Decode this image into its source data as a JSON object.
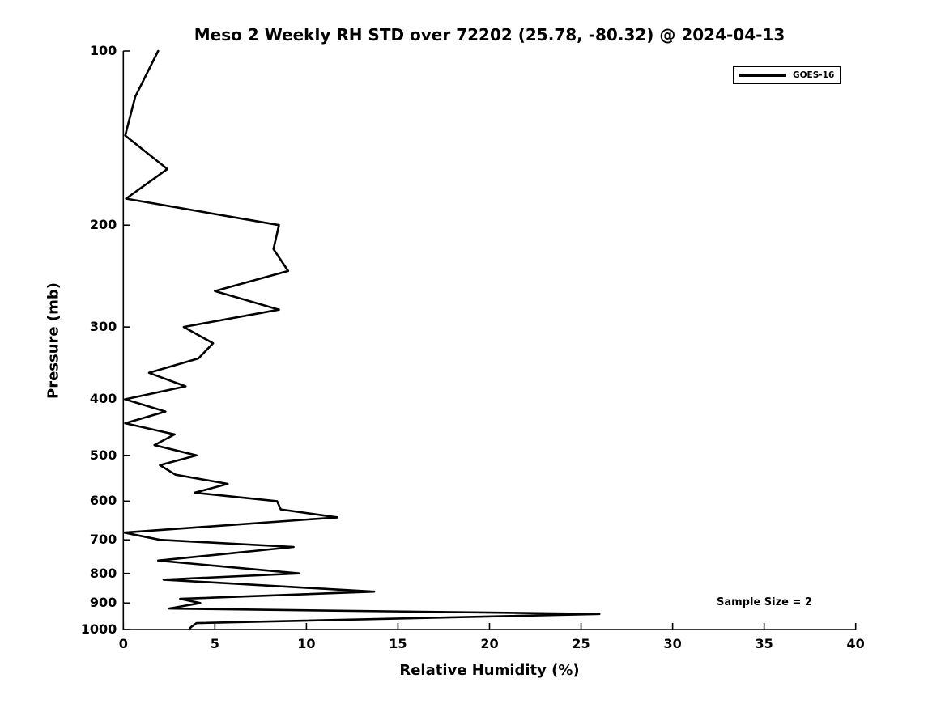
{
  "colors": {
    "line": "#000000",
    "text": "#000000",
    "background": "#ffffff"
  },
  "chart_data": {
    "type": "line",
    "title": "Meso 2 Weekly RH STD over 72202 (25.78, -80.32) @ 2024-04-13",
    "xlabel": "Relative Humidity (%)",
    "ylabel": "Pressure (mb)",
    "xlim": [
      0,
      40
    ],
    "ylim": [
      100,
      1000
    ],
    "y_scale": "log",
    "y_inverted": true,
    "grid": false,
    "x_ticks": [
      0,
      5,
      10,
      15,
      20,
      25,
      30,
      35,
      40
    ],
    "y_ticks": [
      100,
      200,
      300,
      400,
      500,
      600,
      700,
      800,
      900,
      1000
    ],
    "legend": {
      "position": "upper right",
      "entries": [
        {
          "label": "GOES-16",
          "color": "#000000"
        }
      ]
    },
    "annotation": "Sample Size = 2",
    "series": [
      {
        "name": "GOES-16",
        "color": "#000000",
        "points_format": [
          "pressure_mb",
          "rh_std_percent"
        ],
        "points": [
          [
            100,
            1.9
          ],
          [
            120,
            0.65
          ],
          [
            140,
            0.1
          ],
          [
            160,
            2.4
          ],
          [
            180,
            0.15
          ],
          [
            200,
            8.5
          ],
          [
            220,
            8.2
          ],
          [
            240,
            9.0
          ],
          [
            260,
            5.0
          ],
          [
            280,
            8.5
          ],
          [
            300,
            3.3
          ],
          [
            320,
            4.9
          ],
          [
            340,
            4.1
          ],
          [
            360,
            1.4
          ],
          [
            380,
            3.4
          ],
          [
            400,
            0.1
          ],
          [
            420,
            2.3
          ],
          [
            440,
            0.1
          ],
          [
            460,
            2.8
          ],
          [
            480,
            1.7
          ],
          [
            500,
            4.0
          ],
          [
            520,
            2.0
          ],
          [
            540,
            2.85
          ],
          [
            560,
            5.7
          ],
          [
            580,
            3.9
          ],
          [
            600,
            8.4
          ],
          [
            620,
            8.6
          ],
          [
            640,
            11.7
          ],
          [
            680,
            0.05
          ],
          [
            700,
            2.0
          ],
          [
            720,
            9.3
          ],
          [
            760,
            1.9
          ],
          [
            800,
            9.6
          ],
          [
            820,
            2.2
          ],
          [
            860,
            13.7
          ],
          [
            885,
            3.1
          ],
          [
            900,
            4.2
          ],
          [
            920,
            2.5
          ],
          [
            940,
            26.0
          ],
          [
            975,
            4.0
          ],
          [
            990,
            3.7
          ],
          [
            1000,
            3.6
          ]
        ]
      }
    ]
  }
}
